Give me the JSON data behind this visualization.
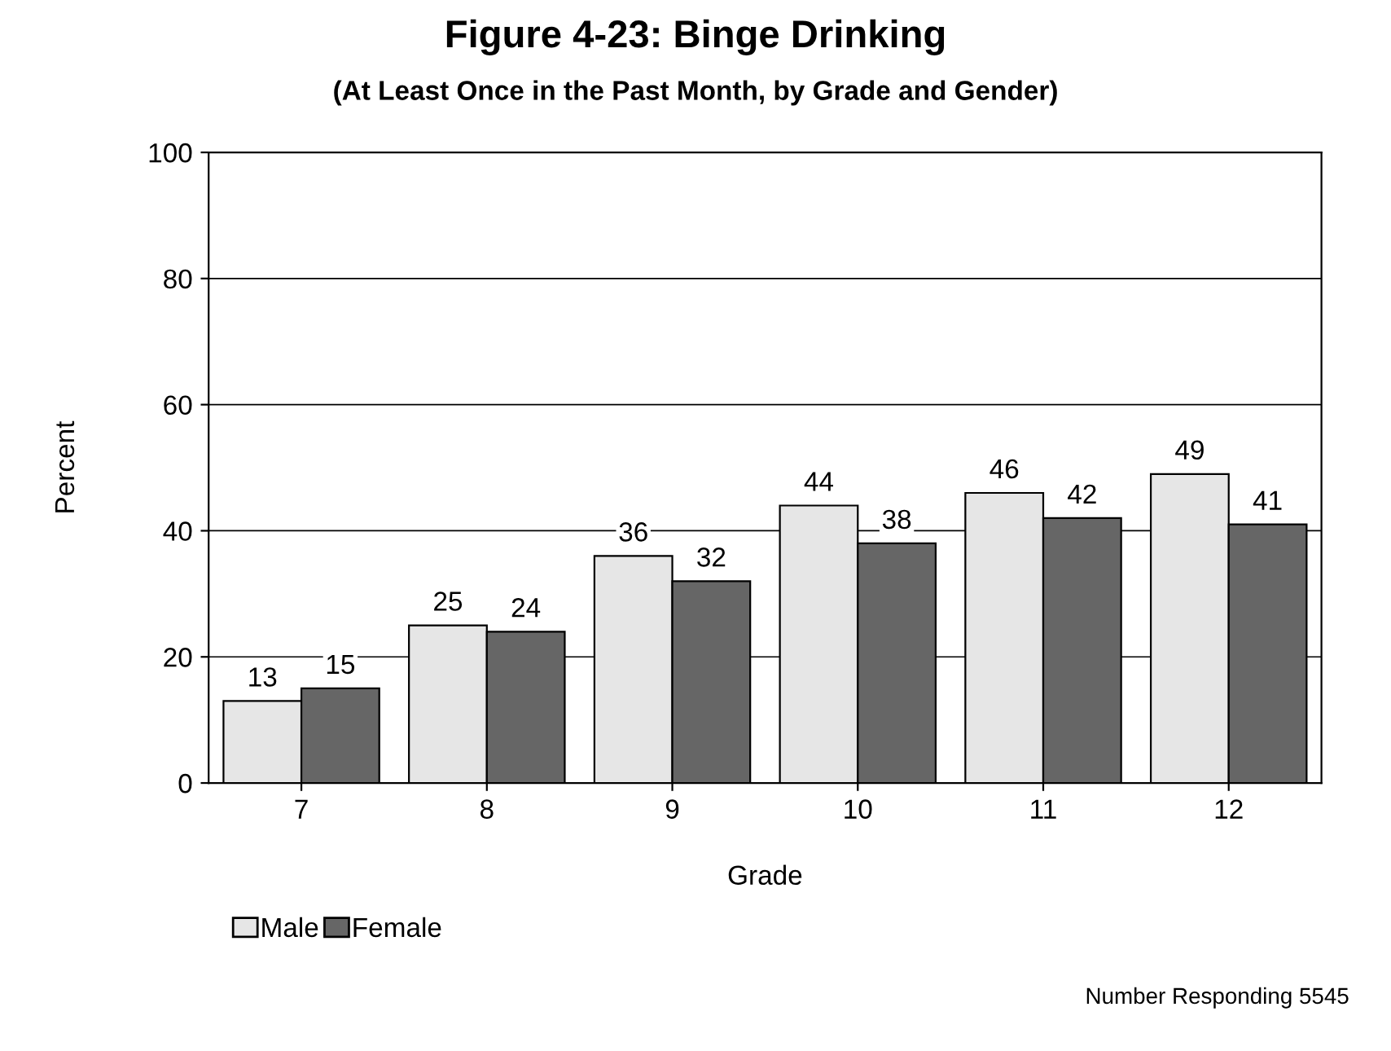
{
  "chart_data": {
    "type": "bar",
    "title": "Figure 4-23: Binge Drinking",
    "subtitle": "(At Least Once in the Past Month, by Grade and Gender)",
    "xlabel": "Grade",
    "ylabel": "Percent",
    "categories": [
      "7",
      "8",
      "9",
      "10",
      "11",
      "12"
    ],
    "series": [
      {
        "name": "Male",
        "color": "#e6e6e6",
        "values": [
          13,
          25,
          36,
          44,
          46,
          49
        ]
      },
      {
        "name": "Female",
        "color": "#666666",
        "values": [
          15,
          24,
          32,
          38,
          42,
          41
        ]
      }
    ],
    "ylim": [
      0,
      100
    ],
    "yticks": [
      0,
      20,
      40,
      60,
      80,
      100
    ],
    "grid": "y",
    "legend": "bottom left",
    "data_labels": true,
    "annotations": [
      "Number Responding 5545"
    ]
  }
}
